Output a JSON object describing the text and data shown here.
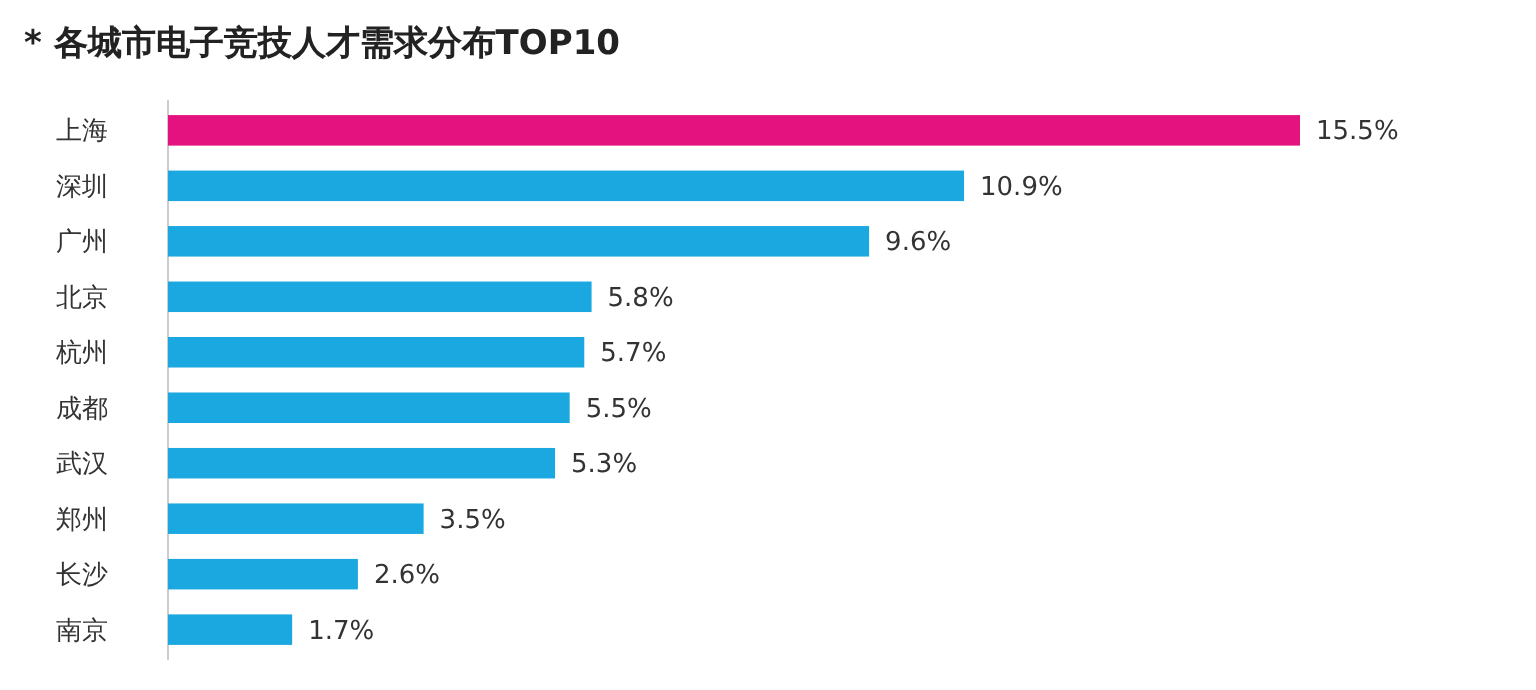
{
  "chart_data": {
    "type": "bar",
    "orientation": "horizontal",
    "title": "* 各城市电子竞技人才需求分布TOP10",
    "categories": [
      "上海",
      "深圳",
      "广州",
      "北京",
      "杭州",
      "成都",
      "武汉",
      "郑州",
      "长沙",
      "南京"
    ],
    "values": [
      15.5,
      10.9,
      9.6,
      5.8,
      5.7,
      5.5,
      5.3,
      3.5,
      2.6,
      1.7
    ],
    "colors": [
      "#e4127e",
      "#1ba8e1",
      "#1ba8e1",
      "#1ba8e1",
      "#1ba8e1",
      "#1ba8e1",
      "#1ba8e1",
      "#1ba8e1",
      "#1ba8e1",
      "#1ba8e1"
    ],
    "value_labels": [
      "15.5%",
      "10.9%",
      "9.6%",
      "5.8%",
      "5.7%",
      "5.5%",
      "5.3%",
      "3.5%",
      "2.6%",
      "1.7%"
    ]
  }
}
